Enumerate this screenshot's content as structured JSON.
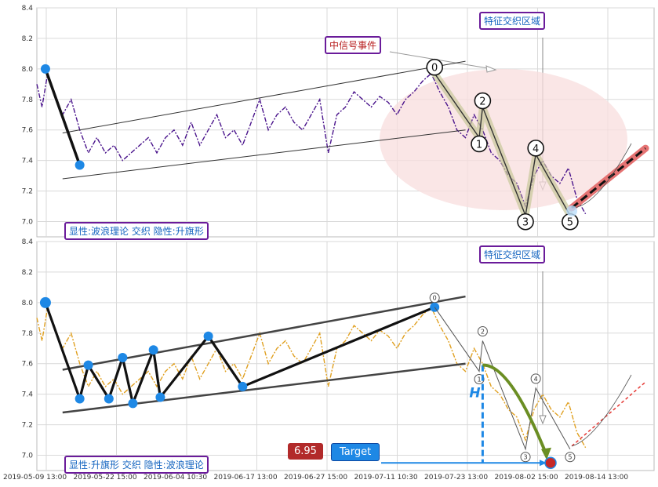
{
  "colors": {
    "purple_series": "#4a148c",
    "yellow_series": "#e0a020",
    "wave_line": "#111111",
    "pivot_dot": "#1e88e5",
    "channel": "#333333",
    "ellipse": "#f8dede",
    "target_line": "#1e88e5",
    "arc_green": "#6b8e23",
    "projection_red": "#e57373",
    "badge_red": "#b22a2a",
    "label_border": "#6a1b9a"
  },
  "x_ticks": [
    "2019-05-09 13:00",
    "2019-05-22 15:00",
    "2019-06-04 10:30",
    "2019-06-17 13:00",
    "2019-06-27 15:00",
    "2019-07-11 10:30",
    "2019-07-23 13:00",
    "2019-08-02 15:00",
    "2019-08-14 13:00"
  ],
  "top_panel": {
    "feature_zone_label": "特征交织区域",
    "signal_label": "中信号事件",
    "legend": "显性:波浪理论 交织 隐性:升旗形",
    "wave_labels": [
      "0",
      "1",
      "2",
      "3",
      "4",
      "5"
    ]
  },
  "bottom_panel": {
    "feature_zone_label": "特征交织区域",
    "legend": "显性:升旗形 交织 隐性:波浪理论",
    "wave_labels": [
      "0",
      "1",
      "2",
      "3",
      "4",
      "5"
    ],
    "h_label": "H",
    "target_value": "6.95",
    "target_label": "Target"
  },
  "chart_data": [
    {
      "type": "line",
      "panel": "top",
      "x": [
        "2019-05-09 13:00",
        "2019-05-22 15:00",
        "2019-06-04 10:30",
        "2019-06-17 13:00",
        "2019-06-27 15:00",
        "2019-07-11 10:30",
        "2019-07-23 13:00",
        "2019-08-02 15:00",
        "2019-08-14 13:00"
      ],
      "y_ticks": [
        "7.0",
        "7.2",
        "7.4",
        "7.6",
        "7.8",
        "8.0",
        "8.2",
        "8.4"
      ],
      "ylim": [
        6.9,
        8.4
      ],
      "grid": true,
      "price_series": [
        {
          "t": 0.0,
          "v": 7.9
        },
        {
          "t": 0.3,
          "v": 7.75
        },
        {
          "t": 0.6,
          "v": 7.95
        },
        {
          "t": 1.0,
          "v": 7.85
        },
        {
          "t": 1.5,
          "v": 7.7
        },
        {
          "t": 2.0,
          "v": 7.8
        },
        {
          "t": 2.5,
          "v": 7.6
        },
        {
          "t": 3.0,
          "v": 7.45
        },
        {
          "t": 3.5,
          "v": 7.55
        },
        {
          "t": 4.0,
          "v": 7.45
        },
        {
          "t": 4.5,
          "v": 7.5
        },
        {
          "t": 5.0,
          "v": 7.4
        },
        {
          "t": 5.5,
          "v": 7.45
        },
        {
          "t": 6.0,
          "v": 7.5
        },
        {
          "t": 6.5,
          "v": 7.55
        },
        {
          "t": 7.0,
          "v": 7.45
        },
        {
          "t": 7.5,
          "v": 7.55
        },
        {
          "t": 8.0,
          "v": 7.6
        },
        {
          "t": 8.5,
          "v": 7.5
        },
        {
          "t": 9.0,
          "v": 7.65
        },
        {
          "t": 9.5,
          "v": 7.5
        },
        {
          "t": 10.0,
          "v": 7.6
        },
        {
          "t": 10.5,
          "v": 7.7
        },
        {
          "t": 11.0,
          "v": 7.55
        },
        {
          "t": 11.5,
          "v": 7.6
        },
        {
          "t": 12.0,
          "v": 7.5
        },
        {
          "t": 12.5,
          "v": 7.65
        },
        {
          "t": 13.0,
          "v": 7.8
        },
        {
          "t": 13.5,
          "v": 7.6
        },
        {
          "t": 14.0,
          "v": 7.7
        },
        {
          "t": 14.5,
          "v": 7.75
        },
        {
          "t": 15.0,
          "v": 7.65
        },
        {
          "t": 15.5,
          "v": 7.6
        },
        {
          "t": 16.0,
          "v": 7.7
        },
        {
          "t": 16.5,
          "v": 7.8
        },
        {
          "t": 17.0,
          "v": 7.45
        },
        {
          "t": 17.5,
          "v": 7.7
        },
        {
          "t": 18.0,
          "v": 7.75
        },
        {
          "t": 18.5,
          "v": 7.85
        },
        {
          "t": 19.0,
          "v": 7.8
        },
        {
          "t": 19.5,
          "v": 7.75
        },
        {
          "t": 20.0,
          "v": 7.82
        },
        {
          "t": 20.5,
          "v": 7.78
        },
        {
          "t": 21.0,
          "v": 7.7
        },
        {
          "t": 21.5,
          "v": 7.8
        },
        {
          "t": 22.0,
          "v": 7.85
        },
        {
          "t": 22.5,
          "v": 7.92
        },
        {
          "t": 23.0,
          "v": 7.97
        },
        {
          "t": 23.5,
          "v": 7.85
        },
        {
          "t": 24.0,
          "v": 7.75
        },
        {
          "t": 24.5,
          "v": 7.6
        },
        {
          "t": 25.0,
          "v": 7.55
        },
        {
          "t": 25.5,
          "v": 7.7
        },
        {
          "t": 26.0,
          "v": 7.6
        },
        {
          "t": 26.5,
          "v": 7.45
        },
        {
          "t": 27.0,
          "v": 7.4
        },
        {
          "t": 27.5,
          "v": 7.3
        },
        {
          "t": 28.0,
          "v": 7.25
        },
        {
          "t": 28.5,
          "v": 7.1
        },
        {
          "t": 29.0,
          "v": 7.3
        },
        {
          "t": 29.5,
          "v": 7.4
        },
        {
          "t": 30.0,
          "v": 7.3
        },
        {
          "t": 30.5,
          "v": 7.25
        },
        {
          "t": 31.0,
          "v": 7.35
        },
        {
          "t": 31.5,
          "v": 7.15
        },
        {
          "t": 32.0,
          "v": 7.05
        }
      ],
      "pivots": [
        {
          "t": 0.5,
          "v": 8.0
        },
        {
          "t": 2.5,
          "v": 7.37
        }
      ],
      "waves": [
        {
          "label": "0",
          "t": 23.2,
          "v": 7.97
        },
        {
          "label": "1",
          "t": 25.8,
          "v": 7.55
        },
        {
          "label": "2",
          "t": 26.0,
          "v": 7.75
        },
        {
          "label": "3",
          "t": 28.5,
          "v": 7.04
        },
        {
          "label": "4",
          "t": 29.1,
          "v": 7.44
        },
        {
          "label": "5",
          "t": 31.1,
          "v": 7.04
        }
      ],
      "channel_upper": [
        {
          "t": 1.5,
          "v": 7.58
        },
        {
          "t": 25.0,
          "v": 8.05
        }
      ],
      "channel_lower": [
        {
          "t": 1.5,
          "v": 7.28
        },
        {
          "t": 25.0,
          "v": 7.6
        }
      ],
      "projection": [
        {
          "t": 31.2,
          "v": 7.09
        },
        {
          "t": 35.5,
          "v": 7.48
        }
      ]
    },
    {
      "type": "line",
      "panel": "bottom",
      "x": [
        "2019-05-09 13:00",
        "2019-05-22 15:00",
        "2019-06-04 10:30",
        "2019-06-17 13:00",
        "2019-06-27 15:00",
        "2019-07-11 10:30",
        "2019-07-23 13:00",
        "2019-08-02 15:00",
        "2019-08-14 13:00"
      ],
      "y_ticks": [
        "7.0",
        "7.2",
        "7.4",
        "7.6",
        "7.8",
        "8.0",
        "8.2",
        "8.4"
      ],
      "ylim": [
        6.9,
        8.4
      ],
      "grid": true,
      "flag_pivots": [
        {
          "t": 0.5,
          "v": 8.0
        },
        {
          "t": 2.5,
          "v": 7.37
        },
        {
          "t": 3.0,
          "v": 7.59
        },
        {
          "t": 4.2,
          "v": 7.37
        },
        {
          "t": 5.0,
          "v": 7.64
        },
        {
          "t": 5.6,
          "v": 7.34
        },
        {
          "t": 6.8,
          "v": 7.69
        },
        {
          "t": 7.2,
          "v": 7.38
        },
        {
          "t": 10.0,
          "v": 7.78
        },
        {
          "t": 12.0,
          "v": 7.45
        },
        {
          "t": 23.2,
          "v": 7.97
        }
      ],
      "waves": [
        {
          "label": "0",
          "t": 23.2,
          "v": 7.97
        },
        {
          "label": "1",
          "t": 25.8,
          "v": 7.55
        },
        {
          "label": "2",
          "t": 26.0,
          "v": 7.75
        },
        {
          "label": "3",
          "t": 28.5,
          "v": 7.04
        },
        {
          "label": "4",
          "t": 29.1,
          "v": 7.44
        },
        {
          "label": "5",
          "t": 31.1,
          "v": 7.04
        }
      ],
      "channel_upper": [
        {
          "t": 1.5,
          "v": 7.56
        },
        {
          "t": 25.0,
          "v": 8.04
        }
      ],
      "channel_lower": [
        {
          "t": 1.5,
          "v": 7.28
        },
        {
          "t": 25.0,
          "v": 7.6
        }
      ],
      "target_value": 6.95,
      "projection": [
        {
          "t": 31.2,
          "v": 7.06
        },
        {
          "t": 35.5,
          "v": 7.48
        }
      ]
    }
  ]
}
